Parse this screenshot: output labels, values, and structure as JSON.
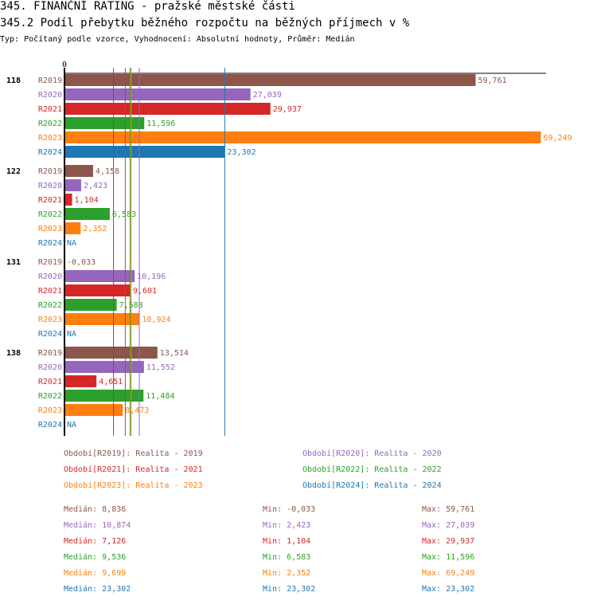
{
  "title": "345. FINANČNÍ RATING - pražské městské části",
  "subtitle": "345.2 Podíl přebytku běžného rozpočtu na běžných příjmech v %",
  "type_line": "Typ: Počítaný podle vzorce, Vyhodnocení: Absolutní hodnoty, Průměr: Medián",
  "colors": {
    "R2019": "#8c564b",
    "R2020": "#9467bd",
    "R2021": "#d62728",
    "R2022": "#2ca02c",
    "R2023": "#ff7f0e",
    "R2024": "#1f77b4"
  },
  "chart_data": {
    "type": "bar",
    "orientation": "horizontal",
    "axis_zero_label": "0",
    "xlim": [
      0,
      69.249
    ],
    "groups": [
      "118",
      "122",
      "131",
      "138"
    ],
    "series": [
      {
        "name": "R2019",
        "values": [
          59.761,
          4.158,
          -0.033,
          13.514
        ],
        "labels": [
          "59,761",
          "4,158",
          "-0,033",
          "13,514"
        ]
      },
      {
        "name": "R2020",
        "values": [
          27.039,
          2.423,
          10.196,
          11.552
        ],
        "labels": [
          "27,039",
          "2,423",
          "10,196",
          "11,552"
        ]
      },
      {
        "name": "R2021",
        "values": [
          29.937,
          1.104,
          9.601,
          4.651
        ],
        "labels": [
          "29,937",
          "1,104",
          "9,601",
          "4,651"
        ]
      },
      {
        "name": "R2022",
        "values": [
          11.596,
          6.583,
          7.588,
          11.484
        ],
        "labels": [
          "11,596",
          "6,583",
          "7,588",
          "11,484"
        ]
      },
      {
        "name": "R2023",
        "values": [
          69.249,
          2.352,
          10.924,
          8.473
        ],
        "labels": [
          "69,249",
          "2,352",
          "10,924",
          "8,473"
        ]
      },
      {
        "name": "R2024",
        "values": [
          23.302,
          null,
          null,
          null
        ],
        "labels": [
          "23,302",
          "NA",
          "NA",
          "NA"
        ]
      }
    ],
    "median_lines": [
      {
        "series": "R2019",
        "value": 8.836
      },
      {
        "series": "R2020",
        "value": 10.874
      },
      {
        "series": "R2021",
        "value": 7.126
      },
      {
        "series": "R2022",
        "value": 9.536
      },
      {
        "series": "R2023",
        "value": 9.699
      },
      {
        "series": "R2024",
        "value": 23.302
      }
    ]
  },
  "legend": [
    {
      "series": "R2019",
      "label": "Období[R2019]: Realita - 2019"
    },
    {
      "series": "R2020",
      "label": "Období[R2020]: Realita - 2020"
    },
    {
      "series": "R2021",
      "label": "Období[R2021]: Realita - 2021"
    },
    {
      "series": "R2022",
      "label": "Období[R2022]: Realita - 2022"
    },
    {
      "series": "R2023",
      "label": "Období[R2023]: Realita - 2023"
    },
    {
      "series": "R2024",
      "label": "Období[R2024]: Realita - 2024"
    }
  ],
  "stats": [
    {
      "series": "R2019",
      "median": "Medián: 8,836",
      "min": "Min: -0,033",
      "max": "Max: 59,761"
    },
    {
      "series": "R2020",
      "median": "Medián: 10,874",
      "min": "Min: 2,423",
      "max": "Max: 27,039"
    },
    {
      "series": "R2021",
      "median": "Medián: 7,126",
      "min": "Min: 1,104",
      "max": "Max: 29,937"
    },
    {
      "series": "R2022",
      "median": "Medián: 9,536",
      "min": "Min: 6,583",
      "max": "Max: 11,596"
    },
    {
      "series": "R2023",
      "median": "Medián: 9,699",
      "min": "Min: 2,352",
      "max": "Max: 69,249"
    },
    {
      "series": "R2024",
      "median": "Medián: 23,302",
      "min": "Min: 23,302",
      "max": "Max: 23,302"
    }
  ]
}
